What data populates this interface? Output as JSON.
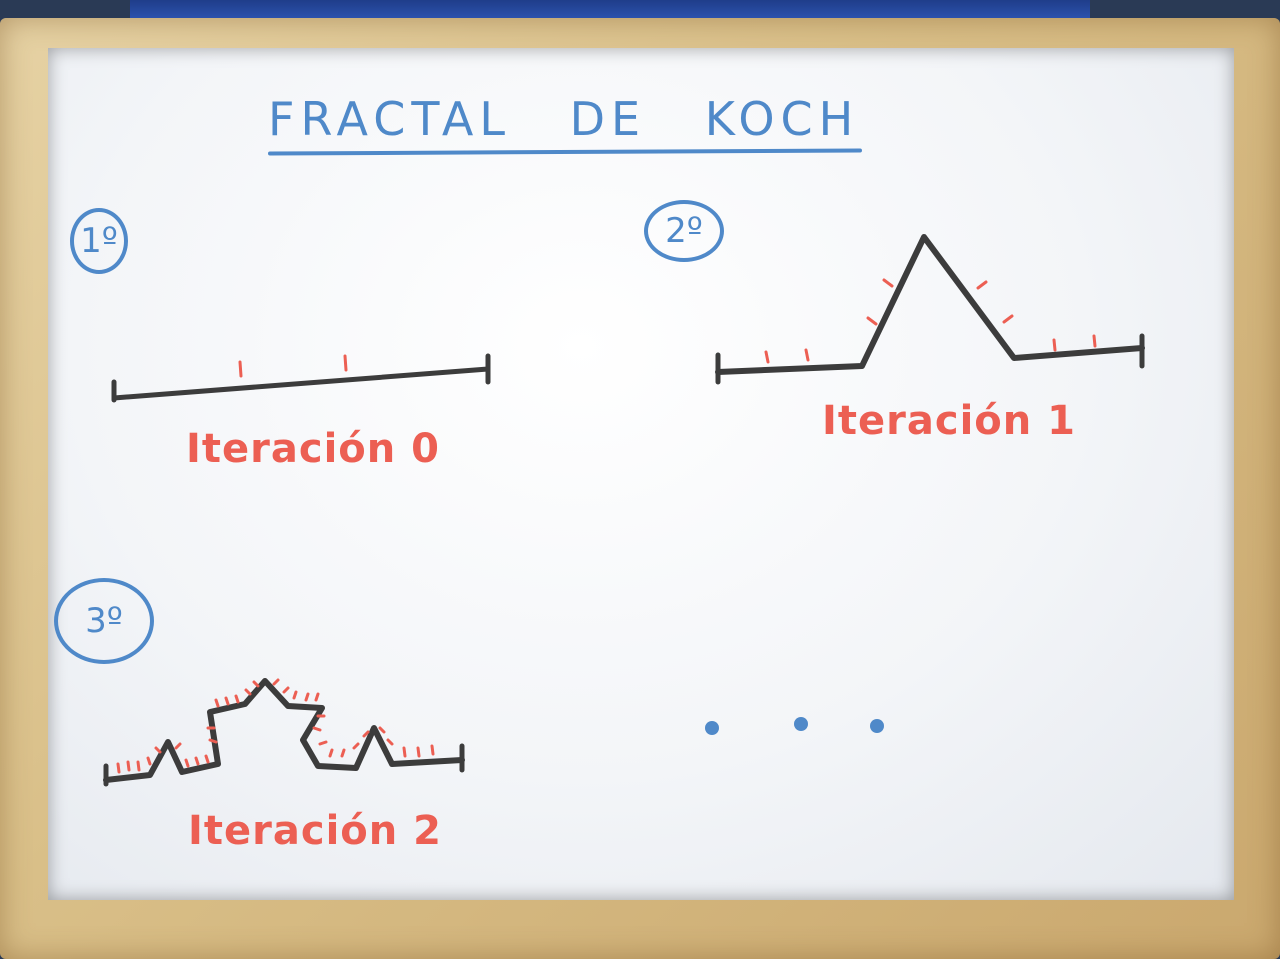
{
  "whiteboard": {
    "title": "FRACTAL DE KOCH",
    "steps": [
      {
        "badge": "1º",
        "caption": "Iteración 0"
      },
      {
        "badge": "2º",
        "caption": "Iteración 1"
      },
      {
        "badge": "3º",
        "caption": "Iteración 2"
      }
    ],
    "ellipsis": "• • •"
  },
  "colors": {
    "marker_blue": "#4f89c9",
    "marker_red": "#ec5f53",
    "marker_black": "#3c3c3c",
    "frame_wood": "#d9bf88"
  }
}
